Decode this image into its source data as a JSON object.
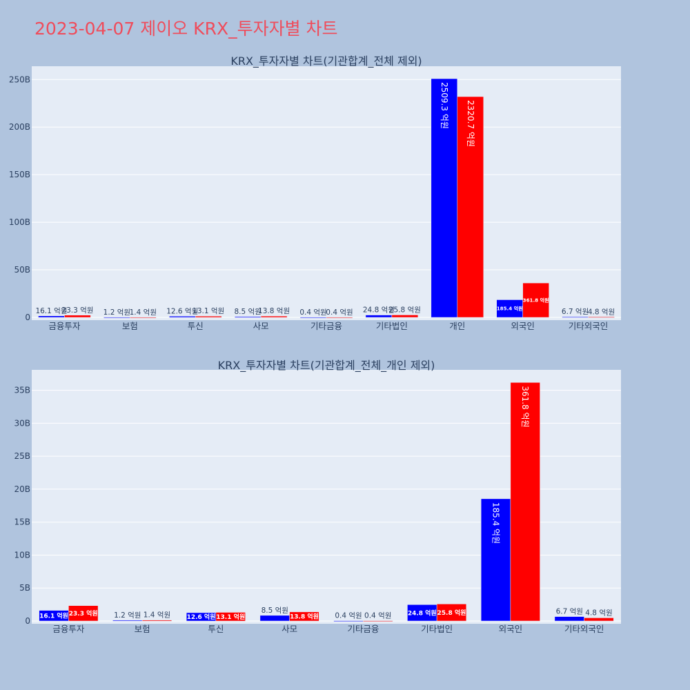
{
  "page": {
    "title": "2023-04-07 제이오 KRX_투자자별 차트"
  },
  "colors": {
    "buy": "#0000ff",
    "sell": "#ff0000",
    "plot_bg": "#e5ecf6",
    "page_bg": "#b0c4de",
    "title": "#ef4c5b"
  },
  "chart_data": [
    {
      "type": "bar",
      "title": "KRX_투자자별 차트(기관합계_전체 제외)",
      "categories": [
        "금융투자",
        "보험",
        "투신",
        "사모",
        "기타금융",
        "기타법인",
        "개인",
        "외국인",
        "기타외국인"
      ],
      "series": [
        {
          "values": [
            1.61,
            0.12,
            1.26,
            0.85,
            0.04,
            2.48,
            250.93,
            18.54,
            0.67
          ],
          "labels": [
            "16.1 억원",
            "1.2 억원",
            "12.6 억원",
            "8.5 억원",
            "0.4 억원",
            "24.8 억원",
            "2509.3 억원",
            "185.4 억원",
            "6.7 억원"
          ]
        },
        {
          "values": [
            2.33,
            0.14,
            1.31,
            1.38,
            0.04,
            2.58,
            232.07,
            36.18,
            0.48
          ],
          "labels": [
            "23.3 억원",
            "1.4 억원",
            "13.1 억원",
            "13.8 억원",
            "0.4 억원",
            "25.8 억원",
            "2320.7 억원",
            "361.8 억원",
            "4.8 억원"
          ]
        }
      ],
      "yunit": "B",
      "yticks": [
        0,
        50,
        100,
        150,
        200,
        250
      ],
      "ylim": [
        0,
        264
      ],
      "grid": true
    },
    {
      "type": "bar",
      "title": "KRX_투자자별 차트(기관합계_전체_개인 제외)",
      "categories": [
        "금융투자",
        "보험",
        "투신",
        "사모",
        "기타금융",
        "기타법인",
        "외국인",
        "기타외국인"
      ],
      "series": [
        {
          "values": [
            1.61,
            0.12,
            1.26,
            0.85,
            0.04,
            2.48,
            18.54,
            0.67
          ],
          "labels": [
            "16.1 억원",
            "1.2 억원",
            "12.6 억원",
            "8.5 억원",
            "0.4 억원",
            "24.8 억원",
            "185.4 억원",
            "6.7 억원"
          ]
        },
        {
          "values": [
            2.33,
            0.14,
            1.31,
            1.38,
            0.04,
            2.58,
            36.18,
            0.48
          ],
          "labels": [
            "23.3 억원",
            "1.4 억원",
            "13.1 억원",
            "13.8 억원",
            "0.4 억원",
            "25.8 억원",
            "361.8 억원",
            "4.8 억원"
          ]
        }
      ],
      "yunit": "B",
      "yticks": [
        0,
        5,
        10,
        15,
        20,
        25,
        30,
        35
      ],
      "ylim": [
        0,
        38.1
      ],
      "grid": true
    }
  ]
}
